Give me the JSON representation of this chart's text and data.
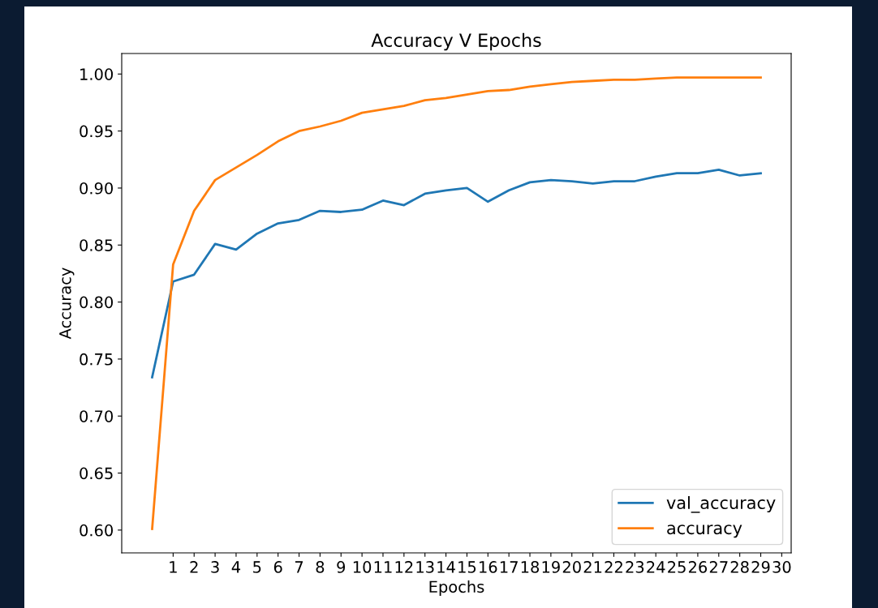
{
  "chart_data": {
    "type": "line",
    "title": "Accuracy V Epochs",
    "xlabel": "Epochs",
    "ylabel": "Accuracy",
    "x": [
      0,
      1,
      2,
      3,
      4,
      5,
      6,
      7,
      8,
      9,
      10,
      11,
      12,
      13,
      14,
      15,
      16,
      17,
      18,
      19,
      20,
      21,
      22,
      23,
      24,
      25,
      26,
      27,
      28,
      29
    ],
    "series": [
      {
        "name": "val_accuracy",
        "color": "#1f77b4",
        "values": [
          0.734,
          0.818,
          0.824,
          0.851,
          0.846,
          0.86,
          0.869,
          0.872,
          0.88,
          0.879,
          0.881,
          0.889,
          0.885,
          0.895,
          0.898,
          0.9,
          0.888,
          0.898,
          0.905,
          0.907,
          0.906,
          0.904,
          0.906,
          0.906,
          0.91,
          0.913,
          0.913,
          0.916,
          0.911,
          0.913
        ]
      },
      {
        "name": "accuracy",
        "color": "#ff7f0e",
        "values": [
          0.601,
          0.833,
          0.88,
          0.907,
          0.918,
          0.929,
          0.941,
          0.95,
          0.954,
          0.959,
          0.966,
          0.969,
          0.972,
          0.977,
          0.979,
          0.982,
          0.985,
          0.986,
          0.989,
          0.991,
          0.993,
          0.994,
          0.995,
          0.995,
          0.996,
          0.997,
          0.997,
          0.997,
          0.997,
          0.997
        ]
      }
    ],
    "xlim": [
      -1.45,
      30.45
    ],
    "xticks": [
      1,
      2,
      3,
      4,
      5,
      6,
      7,
      8,
      9,
      10,
      11,
      12,
      13,
      14,
      15,
      16,
      17,
      18,
      19,
      20,
      21,
      22,
      23,
      24,
      25,
      26,
      27,
      28,
      29,
      30
    ],
    "ylim": [
      0.58,
      1.018
    ],
    "yticks": [
      {
        "value": 0.6,
        "label": "0.60"
      },
      {
        "value": 0.65,
        "label": "0.65"
      },
      {
        "value": 0.7,
        "label": "0.70"
      },
      {
        "value": 0.75,
        "label": "0.75"
      },
      {
        "value": 0.8,
        "label": "0.80"
      },
      {
        "value": 0.85,
        "label": "0.85"
      },
      {
        "value": 0.9,
        "label": "0.90"
      },
      {
        "value": 0.95,
        "label": "0.95"
      },
      {
        "value": 1.0,
        "label": "1.00"
      }
    ],
    "legend": "bottom right",
    "grid": false,
    "marker": "none",
    "line_style": "solid"
  }
}
